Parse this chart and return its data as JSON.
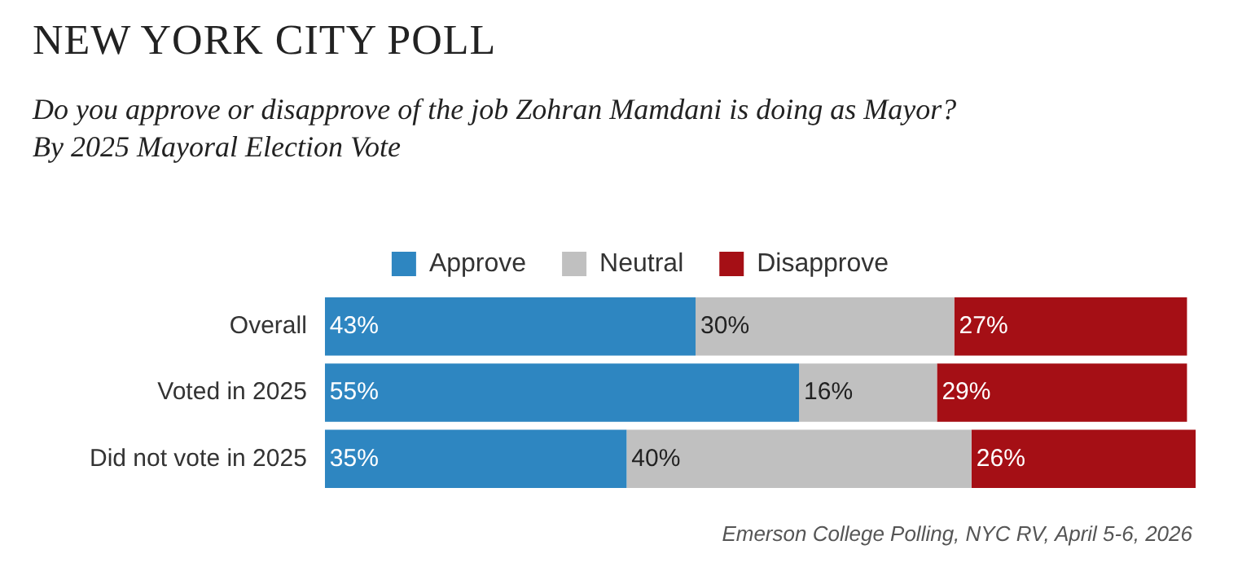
{
  "chart_data": {
    "type": "bar",
    "orientation": "horizontal",
    "stacked": true,
    "title": "NEW YORK CITY POLL",
    "subtitle": "Do you approve or disapprove of the job Zohran Mamdani is doing as Mayor?\nBy 2025 Mayoral Election Vote",
    "categories": [
      "Overall",
      "Voted in 2025",
      "Did not vote in 2025"
    ],
    "series": [
      {
        "name": "Approve",
        "color": "#2e86c1",
        "values": [
          43,
          55,
          35
        ],
        "value_labels": [
          "43%",
          "55%",
          "35%"
        ]
      },
      {
        "name": "Neutral",
        "color": "#c0c0c0",
        "values": [
          30,
          16,
          40
        ],
        "value_labels": [
          "30%",
          "16%",
          "40%"
        ]
      },
      {
        "name": "Disapprove",
        "color": "#a50f15",
        "values": [
          27,
          29,
          26
        ],
        "value_labels": [
          "27%",
          "29%",
          "26%"
        ]
      }
    ],
    "xlim": [
      0,
      101
    ],
    "tick_labels": "y",
    "legend": "top",
    "annotations": [
      "Emerson College Polling, NYC RV, April 5-6, 2026"
    ]
  }
}
